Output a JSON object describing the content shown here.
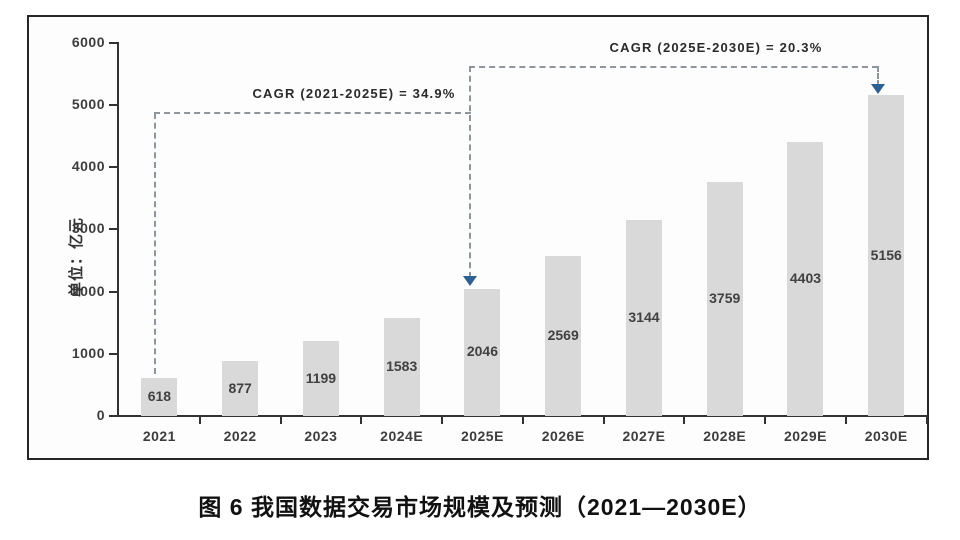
{
  "colors": {
    "bar_fill": "#d9d9d9",
    "axis": "#323232",
    "dashed_line": "#8f959c",
    "arrow": "#2d6191",
    "text": "#3d3d3d",
    "frame_border": "#262626",
    "background": "#ffffff"
  },
  "annotations": {
    "cagr_1": "CAGR (2021-2025E) = 34.9%",
    "cagr_2": "CAGR (2025E-2030E) = 20.3%"
  },
  "chart_data": {
    "type": "bar",
    "title": "图 6  我国数据交易市场规模及预测（2021—2030E）",
    "ylabel": "单位：亿元",
    "xlabel": "",
    "categories": [
      "2021",
      "2022",
      "2023",
      "2024E",
      "2025E",
      "2026E",
      "2027E",
      "2028E",
      "2029E",
      "2030E"
    ],
    "values": [
      618,
      877,
      1199,
      1583,
      2046,
      2569,
      3144,
      3759,
      4403,
      5156
    ],
    "value_labels_inside_bars": true,
    "ylim": [
      0,
      6000
    ],
    "yticks": [
      0,
      1000,
      2000,
      3000,
      4000,
      5000,
      6000
    ],
    "grid": false,
    "legend": false,
    "annotations": [
      {
        "label": "CAGR (2021-2025E) = 34.9%",
        "from_category": "2021",
        "to_category": "2025E",
        "cagr_pct": 34.9
      },
      {
        "label": "CAGR (2025E-2030E) = 20.3%",
        "from_category": "2025E",
        "to_category": "2030E",
        "cagr_pct": 20.3
      }
    ]
  }
}
